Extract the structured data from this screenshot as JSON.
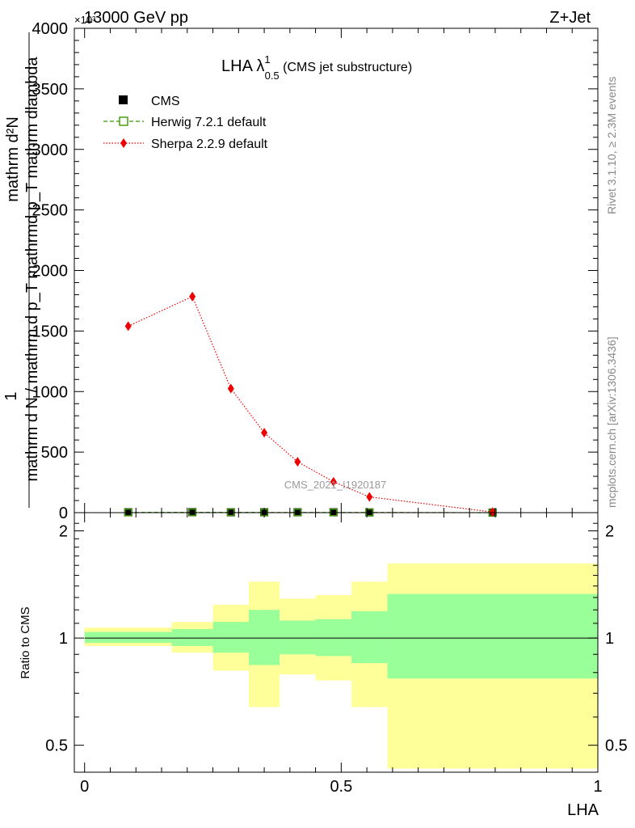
{
  "header": {
    "process": "13000 GeV pp",
    "channel": "Z+Jet",
    "exponent": "×10³"
  },
  "side": {
    "rivet": "Rivet 3.1.10, ≥ 2.3M events",
    "mcplots": "mcplots.cern.ch [arXiv:1306.3436]"
  },
  "plot_title": {
    "main": "LHA λ",
    "sup": "1",
    "sub": "0.5",
    "suffix": " (CMS jet substructure)"
  },
  "watermark": "CMS_2021_I1920187",
  "legend": [
    {
      "label": "CMS"
    },
    {
      "label": "Herwig 7.2.1 default"
    },
    {
      "label": "Sherpa 2.2.9 default"
    }
  ],
  "colors": {
    "data": "#000000",
    "herwig": "#3a9a00",
    "sherpa": "#ee0000",
    "band_inner": "#99ff99",
    "band_outer": "#ffff99"
  },
  "chart_data": [
    {
      "type": "line",
      "panel": "main",
      "ylabel": "1 / mathrm d N / mathrm d p_T mathrmd p_T mathrm dlambda  mathrm d²N",
      "ylabel_numerator": "mathrm d²N",
      "ylabel_denominator": "mathrm d N / mathrm d p_T mathrmd p_T mathrm dlambda",
      "ylabel_prefix": "1",
      "ylim": [
        0,
        4000
      ],
      "y_scale_factor": 1000,
      "yticks": [
        0,
        500,
        1000,
        1500,
        2000,
        2500,
        3000,
        3500,
        4000
      ],
      "ytick_labels": [
        "0",
        "500",
        "1000",
        "1500",
        "2000",
        "2500",
        "3000",
        "3500",
        "4000"
      ],
      "xlim": [
        -0.02,
        1.0
      ],
      "series": [
        {
          "name": "CMS",
          "marker": "square",
          "x": [
            0.085,
            0.21,
            0.285,
            0.35,
            0.415,
            0.485,
            0.555,
            0.795
          ],
          "y": [
            3,
            4,
            3,
            3,
            3,
            3,
            2,
            1
          ]
        },
        {
          "name": "Herwig 7.2.1 default",
          "marker": "open-square",
          "x": [
            0.085,
            0.21,
            0.285,
            0.35,
            0.415,
            0.485,
            0.555,
            0.795
          ],
          "y": [
            2,
            3,
            3,
            2,
            2,
            2,
            2,
            0
          ]
        },
        {
          "name": "Sherpa 2.2.9 default",
          "marker": "diamond",
          "x": [
            0.085,
            0.21,
            0.285,
            0.35,
            0.415,
            0.485,
            0.555,
            0.795
          ],
          "y": [
            1540,
            1785,
            1025,
            660,
            420,
            255,
            130,
            5
          ]
        }
      ]
    },
    {
      "type": "area",
      "panel": "ratio",
      "xlabel": "LHA",
      "ylabel": "Ratio to CMS",
      "ylim": [
        0.42,
        2.25
      ],
      "log_y": true,
      "yticks": [
        0.5,
        1,
        2
      ],
      "ytick_labels": [
        "0.5",
        "1",
        "2"
      ],
      "xlim": [
        -0.02,
        1.0
      ],
      "xticks": [
        0,
        0.5,
        1
      ],
      "xtick_labels": [
        "0",
        "0.5",
        "1"
      ],
      "reference": 1.0,
      "bins": [
        {
          "x_lo": 0.0,
          "x_hi": 0.17,
          "inner_lo": 0.97,
          "inner_hi": 1.04,
          "outer_lo": 0.95,
          "outer_hi": 1.07
        },
        {
          "x_lo": 0.17,
          "x_hi": 0.25,
          "inner_lo": 0.95,
          "inner_hi": 1.06,
          "outer_lo": 0.91,
          "outer_hi": 1.11
        },
        {
          "x_lo": 0.25,
          "x_hi": 0.32,
          "inner_lo": 0.91,
          "inner_hi": 1.11,
          "outer_lo": 0.81,
          "outer_hi": 1.24
        },
        {
          "x_lo": 0.32,
          "x_hi": 0.38,
          "inner_lo": 0.84,
          "inner_hi": 1.2,
          "outer_lo": 0.64,
          "outer_hi": 1.44
        },
        {
          "x_lo": 0.38,
          "x_hi": 0.45,
          "inner_lo": 0.9,
          "inner_hi": 1.12,
          "outer_lo": 0.79,
          "outer_hi": 1.29
        },
        {
          "x_lo": 0.45,
          "x_hi": 0.52,
          "inner_lo": 0.89,
          "inner_hi": 1.13,
          "outer_lo": 0.76,
          "outer_hi": 1.32
        },
        {
          "x_lo": 0.52,
          "x_hi": 0.59,
          "inner_lo": 0.85,
          "inner_hi": 1.19,
          "outer_lo": 0.64,
          "outer_hi": 1.44
        },
        {
          "x_lo": 0.59,
          "x_hi": 1.0,
          "inner_lo": 0.77,
          "inner_hi": 1.33,
          "outer_lo": 0.43,
          "outer_hi": 1.62
        }
      ]
    }
  ]
}
